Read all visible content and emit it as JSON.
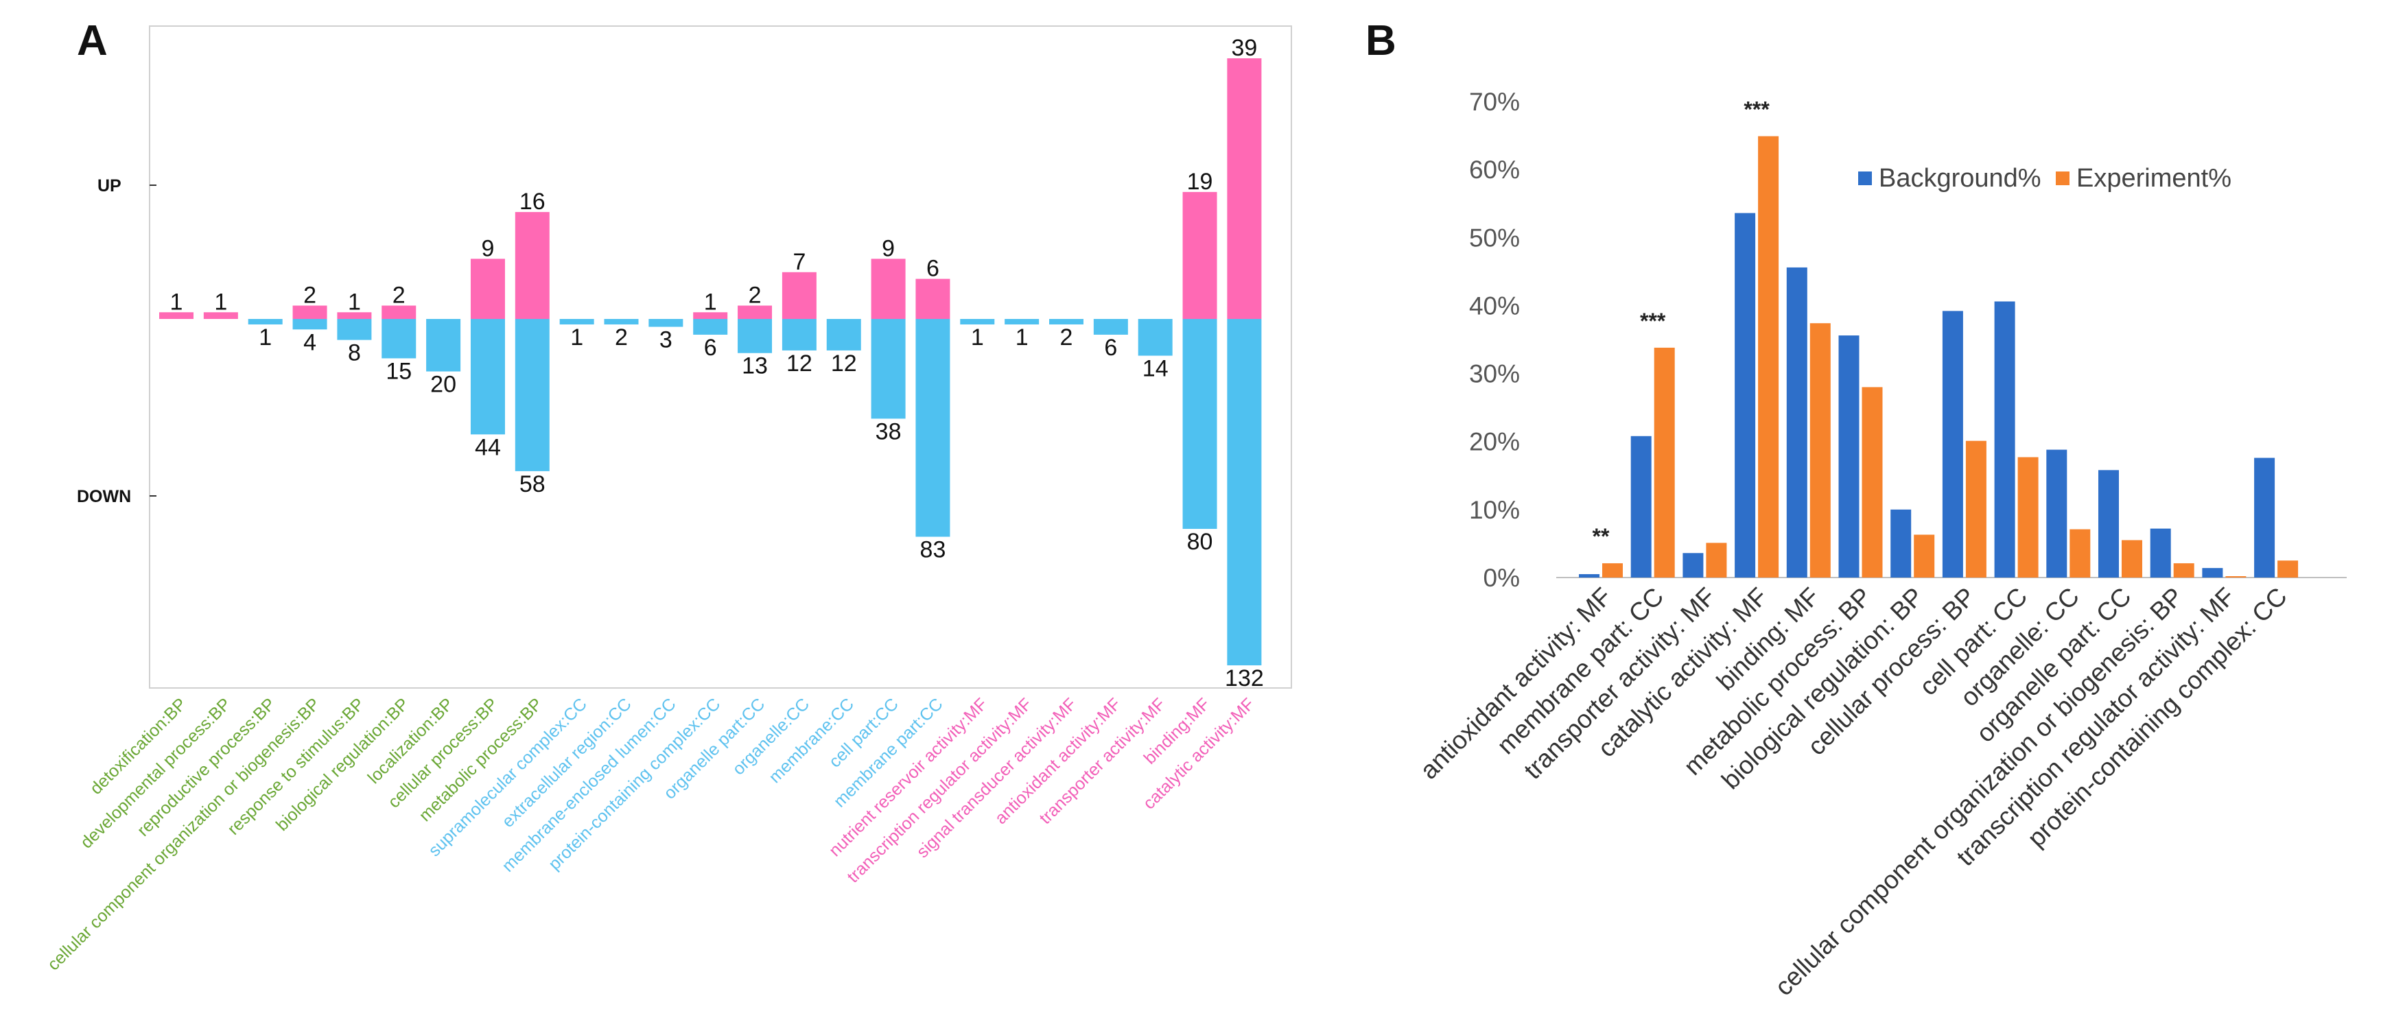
{
  "panels": {
    "a": "A",
    "b": "B"
  },
  "chart_data": [
    {
      "type": "bar",
      "panel": "A",
      "ytick_labels": [
        "UP",
        "DOWN"
      ],
      "categories": [
        "detoxification:BP",
        "developmental process:BP",
        "reproductive process:BP",
        "cellular component organization or biogenesis:BP",
        "response to stimulus:BP",
        "biological regulation:BP",
        "localization:BP",
        "cellular process:BP",
        "metabolic process:BP",
        "supramolecular complex:CC",
        "extracellular region:CC",
        "membrane-enclosed lumen:CC",
        "protein-containing complex:CC",
        "organelle part:CC",
        "organelle:CC",
        "membrane:CC",
        "cell part:CC",
        "membrane part:CC",
        "nutrient reservoir activity:MF",
        "transcription regulator activity:MF",
        "signal transducer activity:MF",
        "antioxidant activity:MF",
        "transporter activity:MF",
        "binding:MF",
        "catalytic activity:MF"
      ],
      "category_groups": [
        "BP",
        "BP",
        "BP",
        "BP",
        "BP",
        "BP",
        "BP",
        "BP",
        "BP",
        "CC",
        "CC",
        "CC",
        "CC",
        "CC",
        "CC",
        "CC",
        "CC",
        "CC",
        "MF",
        "MF",
        "MF",
        "MF",
        "MF",
        "MF",
        "MF"
      ],
      "group_colors": {
        "BP": "#6aa735",
        "CC": "#5ec2ef",
        "MF": "#f25fb8"
      },
      "series": [
        {
          "name": "UP",
          "color": "#ff69b4",
          "values": [
            1,
            1,
            null,
            2,
            1,
            2,
            null,
            9,
            16,
            null,
            null,
            null,
            1,
            2,
            7,
            null,
            9,
            6,
            null,
            null,
            null,
            null,
            null,
            19,
            39
          ]
        },
        {
          "name": "DOWN",
          "color": "#4fc1f0",
          "values": [
            null,
            null,
            1,
            4,
            8,
            15,
            20,
            44,
            58,
            1,
            2,
            3,
            6,
            13,
            12,
            12,
            38,
            83,
            1,
            1,
            2,
            6,
            14,
            80,
            132
          ]
        }
      ]
    },
    {
      "type": "bar",
      "panel": "B",
      "categories": [
        "antioxidant activity: MF",
        "membrane part: CC",
        "transporter activity: MF",
        "catalytic activity: MF",
        "binding: MF",
        "metabolic process: BP",
        "biological regulation: BP",
        "cellular process: BP",
        "cell part: CC",
        "organelle: CC",
        "organelle part: CC",
        "cellular component organization or biogenesis: BP",
        "transcription regulator activity: MF",
        "protein-containing complex: CC"
      ],
      "series": [
        {
          "name": "Background%",
          "color": "#2e6fc9",
          "values": [
            0.5,
            20.8,
            3.6,
            53.6,
            45.6,
            35.6,
            10.0,
            39.2,
            40.6,
            18.8,
            15.8,
            7.2,
            1.4,
            17.6
          ]
        },
        {
          "name": "Experiment%",
          "color": "#f6832c",
          "values": [
            2.1,
            33.8,
            5.1,
            64.9,
            37.4,
            28.0,
            6.3,
            20.1,
            17.7,
            7.1,
            5.5,
            2.1,
            0.2,
            2.5
          ]
        }
      ],
      "significance": [
        {
          "category": "antioxidant activity: MF",
          "label": "**"
        },
        {
          "category": "membrane part: CC",
          "label": "***"
        },
        {
          "category": "catalytic activity: MF",
          "label": "***"
        }
      ],
      "ytick_labels": [
        "0%",
        "10%",
        "20%",
        "30%",
        "40%",
        "50%",
        "60%",
        "70%"
      ],
      "ylim": [
        0,
        70
      ],
      "legend_position": "top-right"
    }
  ]
}
